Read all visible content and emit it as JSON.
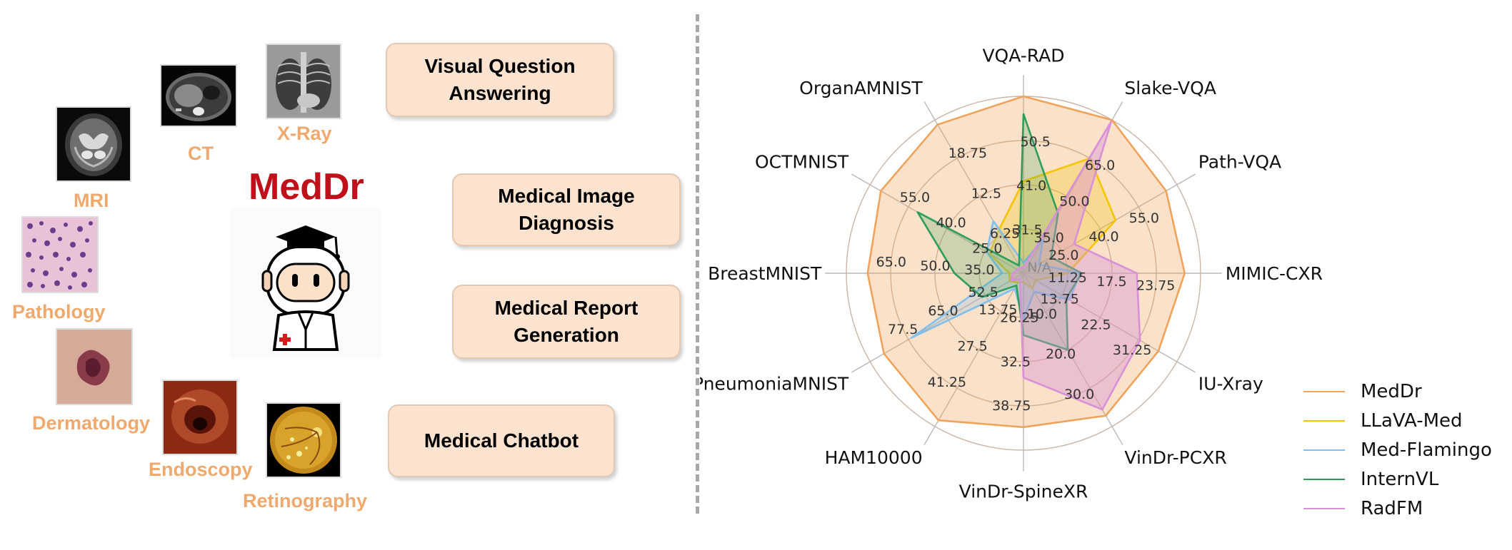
{
  "left_panel": {
    "brand": "MedDr",
    "modalities": [
      "MRI",
      "CT",
      "X-Ray",
      "Pathology",
      "Dermatology",
      "Endoscopy",
      "Retinography"
    ],
    "tasks": [
      "Visual Question Answering",
      "Medical Image Diagnosis",
      "Medical Report Generation",
      "Medical Chatbot"
    ]
  },
  "colors": {
    "MedDr": "#f0a35a",
    "LLaVA-Med": "#f5c400",
    "Med-Flamingo": "#7ec0ee",
    "InternVL": "#2e9e5b",
    "RadFM": "#d890d8",
    "task_box": "#fce3cf",
    "modality_label": "#f0a96c",
    "brand": "#c0101a"
  },
  "chart_data": {
    "type": "radar",
    "axes": [
      "VQA-RAD",
      "Slake-VQA",
      "Path-VQA",
      "MIMIC-CXR",
      "IU-Xray",
      "VinDr-PCXR",
      "VinDr-SpineXR",
      "HAM10000",
      "PneumoniaMNIST",
      "BreastMNIST",
      "OCTMNIST",
      "OrganAMNIST"
    ],
    "center_label": "N/A",
    "ring_labels": [
      [
        "31.5",
        "41.0",
        "50.5"
      ],
      [
        "35.0",
        "50.0",
        "65.0"
      ],
      [
        "25.0",
        "40.0",
        "55.0"
      ],
      [
        "11.25",
        "17.5",
        "23.75"
      ],
      [
        "13.75",
        "22.5",
        "31.25"
      ],
      [
        "10.0",
        "20.0",
        "30.0"
      ],
      [
        "26.25",
        "32.5",
        "38.75"
      ],
      [
        "13.75",
        "27.5",
        "41.25"
      ],
      [
        "52.5",
        "65.0",
        "77.5"
      ],
      [
        "35.0",
        "50.0",
        "65.0"
      ],
      [
        "25.0",
        "40.0",
        "55.0"
      ],
      [
        "6.25",
        "12.5",
        "18.75"
      ]
    ],
    "ring_fractions": [
      0.25,
      0.5,
      0.75
    ],
    "value_scale": "fraction of outer radius",
    "series": [
      {
        "name": "MedDr",
        "values": [
          1.0,
          1.0,
          0.93,
          0.91,
          0.88,
          0.93,
          0.87,
          0.96,
          0.91,
          0.88,
          0.93,
          0.97
        ]
      },
      {
        "name": "LLaVA-Med",
        "values": [
          0.52,
          0.75,
          0.6,
          0.25,
          0.08,
          0.1,
          0.05,
          0.06,
          0.09,
          0.08,
          0.22,
          0.28
        ]
      },
      {
        "name": "Med-Flamingo",
        "values": [
          0.06,
          0.22,
          0.1,
          0.32,
          0.3,
          0.12,
          0.26,
          0.1,
          0.73,
          0.12,
          0.24,
          0.34
        ]
      },
      {
        "name": "InternVL",
        "values": [
          0.9,
          0.39,
          0.18,
          0.33,
          0.28,
          0.5,
          0.35,
          0.08,
          0.27,
          0.39,
          0.69,
          0.05
        ]
      },
      {
        "name": "RadFM",
        "values": [
          0.03,
          0.99,
          0.33,
          0.64,
          0.76,
          0.89,
          0.59,
          0.04,
          0.08,
          0.06,
          0.04,
          0.04
        ]
      }
    ],
    "legend": [
      "MedDr",
      "LLaVA-Med",
      "Med-Flamingo",
      "InternVL",
      "RadFM"
    ],
    "legend_position": "bottom-right"
  }
}
